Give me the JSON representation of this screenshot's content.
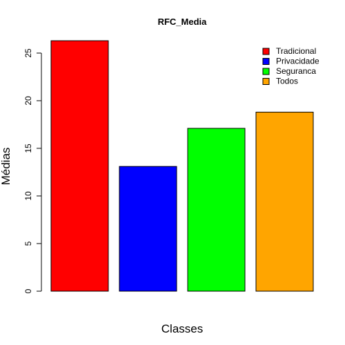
{
  "chart_data": {
    "type": "bar",
    "title": "RFC_Media",
    "xlabel": "Classes",
    "ylabel": "Médias",
    "categories": [
      "Tradicional",
      "Privacidade",
      "Seguranca",
      "Todos"
    ],
    "values": [
      26.3,
      13.1,
      17.1,
      18.8
    ],
    "colors": [
      "#ff0000",
      "#0000ff",
      "#00ff00",
      "#ffa500"
    ],
    "ylim": [
      0,
      26.3
    ],
    "yticks": [
      0,
      5,
      10,
      15,
      20,
      25
    ],
    "grid": false,
    "legend": {
      "placement": "top-right",
      "entries": [
        "Tradicional",
        "Privacidade",
        "Seguranca",
        "Todos"
      ]
    }
  }
}
